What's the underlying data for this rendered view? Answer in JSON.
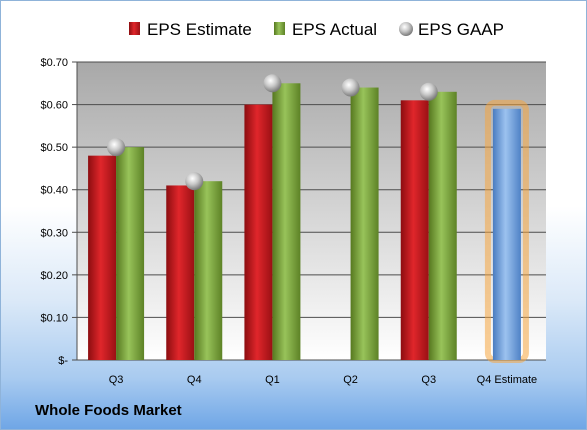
{
  "company": "Whole Foods Market",
  "colors": {
    "estimate": "#c0161b",
    "actual": "#78a23c",
    "gaap": "#b4b4b4",
    "next_estimate": "#6f9ed8",
    "highlight": "#f5a640"
  },
  "chart_data": {
    "type": "bar",
    "categories": [
      "Q3",
      "Q4",
      "Q1",
      "Q2",
      "Q3",
      "Q4 Estimate"
    ],
    "ylim": [
      0,
      0.7
    ],
    "yticks": [
      0,
      0.1,
      0.2,
      0.3,
      0.4,
      0.5,
      0.6,
      0.7
    ],
    "ytick_labels": [
      "$-",
      "$0.10",
      "$0.20",
      "$0.30",
      "$0.40",
      "$0.50",
      "$0.60",
      "$0.70"
    ],
    "grid": true,
    "legend_position": "top",
    "series": [
      {
        "name": "EPS Estimate",
        "type": "bar",
        "values": [
          0.48,
          0.41,
          0.6,
          null,
          0.61,
          0.59
        ]
      },
      {
        "name": "EPS Actual",
        "type": "bar",
        "values": [
          0.5,
          0.42,
          0.65,
          0.64,
          0.63,
          null
        ]
      },
      {
        "name": "EPS GAAP",
        "type": "scatter",
        "values": [
          0.5,
          0.42,
          0.65,
          0.64,
          0.63,
          null
        ]
      }
    ]
  }
}
